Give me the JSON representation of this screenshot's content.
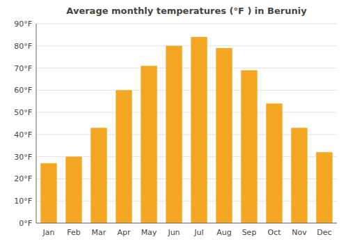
{
  "chart_data": {
    "type": "bar",
    "title": "Average monthly temperatures (°F ) in Beruniy",
    "categories": [
      "Jan",
      "Feb",
      "Mar",
      "Apr",
      "May",
      "Jun",
      "Jul",
      "Aug",
      "Sep",
      "Oct",
      "Nov",
      "Dec"
    ],
    "values": [
      27,
      30,
      43,
      60,
      71,
      80,
      84,
      79,
      69,
      54,
      43,
      32
    ],
    "color": "#F5A623",
    "ylim": [
      0,
      90
    ],
    "yticks": [
      {
        "value": 0,
        "label": "0°F"
      },
      {
        "value": 10,
        "label": "10°F"
      },
      {
        "value": 20,
        "label": "20°F"
      },
      {
        "value": 30,
        "label": "30°F"
      },
      {
        "value": 40,
        "label": "40°F"
      },
      {
        "value": 50,
        "label": "50°F"
      },
      {
        "value": 60,
        "label": "60°F"
      },
      {
        "value": 70,
        "label": "70°F"
      },
      {
        "value": 80,
        "label": "80°F"
      },
      {
        "value": 90,
        "label": "90°F"
      }
    ],
    "grid": true
  }
}
